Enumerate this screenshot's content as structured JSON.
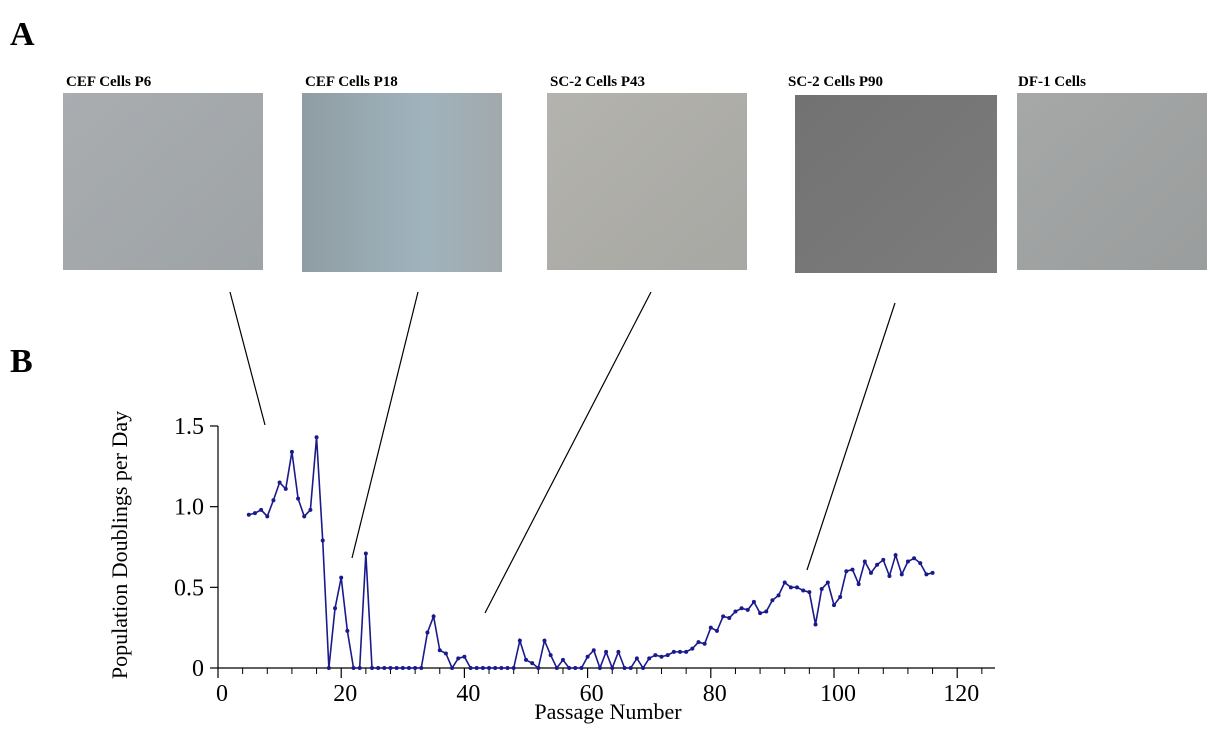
{
  "figure": {
    "panel_a": "A",
    "panel_b": "B",
    "images": [
      "CEF Cells P6",
      "CEF Cells P18",
      "SC-2 Cells P43",
      "SC-2 Cells P90",
      "DF-1 Cells"
    ]
  },
  "chart_data": {
    "type": "line",
    "x_label": "Passage Number",
    "y_label": "Population Doublings per Day",
    "x": [
      5,
      6,
      7,
      8,
      9,
      10,
      11,
      12,
      13,
      14,
      15,
      16,
      17,
      18,
      19,
      20,
      21,
      22,
      23,
      24,
      25,
      26,
      27,
      28,
      29,
      30,
      31,
      32,
      33,
      34,
      35,
      36,
      37,
      38,
      39,
      40,
      41,
      42,
      43,
      44,
      45,
      46,
      47,
      48,
      49,
      50,
      51,
      52,
      53,
      54,
      55,
      56,
      57,
      58,
      59,
      60,
      61,
      62,
      63,
      64,
      65,
      66,
      67,
      68,
      69,
      70,
      71,
      72,
      73,
      74,
      75,
      76,
      77,
      78,
      79,
      80,
      81,
      82,
      83,
      84,
      85,
      86,
      87,
      88,
      89,
      90,
      91,
      92,
      93,
      94,
      95,
      96,
      97,
      98,
      99,
      100,
      101,
      102,
      103,
      104,
      105,
      106,
      107,
      108,
      109,
      110,
      111,
      112,
      113,
      114,
      115,
      116
    ],
    "values": [
      0.95,
      0.96,
      0.98,
      0.94,
      1.04,
      1.15,
      1.11,
      1.34,
      1.05,
      0.94,
      0.98,
      1.43,
      0.79,
      0,
      0.37,
      0.56,
      0.23,
      0,
      0,
      0.71,
      0,
      0,
      0,
      0,
      0,
      0,
      0,
      0,
      0,
      0.22,
      0.32,
      0.11,
      0.09,
      0,
      0.06,
      0.07,
      0,
      0,
      0,
      0,
      0,
      0,
      0,
      0,
      0.17,
      0.05,
      0.03,
      0,
      0.17,
      0.08,
      0,
      0.05,
      0,
      0,
      0,
      0.07,
      0.11,
      0,
      0.1,
      0,
      0.1,
      0,
      0,
      0.06,
      0,
      0.06,
      0.08,
      0.07,
      0.08,
      0.1,
      0.1,
      0.1,
      0.12,
      0.16,
      0.15,
      0.25,
      0.23,
      0.32,
      0.31,
      0.35,
      0.37,
      0.36,
      0.41,
      0.34,
      0.35,
      0.42,
      0.45,
      0.53,
      0.5,
      0.5,
      0.48,
      0.47,
      0.27,
      0.49,
      0.53,
      0.39,
      0.44,
      0.6,
      0.61,
      0.52,
      0.66,
      0.59,
      0.64,
      0.67,
      0.57,
      0.7,
      0.58,
      0.66,
      0.68,
      0.65,
      0.58,
      0.59
    ],
    "color": "#1a1a8c",
    "xlim": [
      0,
      126
    ],
    "xticks": [
      0,
      20,
      40,
      60,
      80,
      100,
      120
    ],
    "x_minor_ticks": [
      4,
      8,
      12,
      16,
      24,
      28,
      32,
      36,
      44,
      48,
      52,
      56,
      64,
      68,
      72,
      76,
      84,
      88,
      92,
      96,
      104,
      108,
      112,
      116,
      124
    ],
    "ylim": [
      0,
      1.5
    ],
    "yticks": [
      0,
      0.5,
      {
        "value": 1,
        "label": "1.0"
      },
      1.5
    ]
  }
}
